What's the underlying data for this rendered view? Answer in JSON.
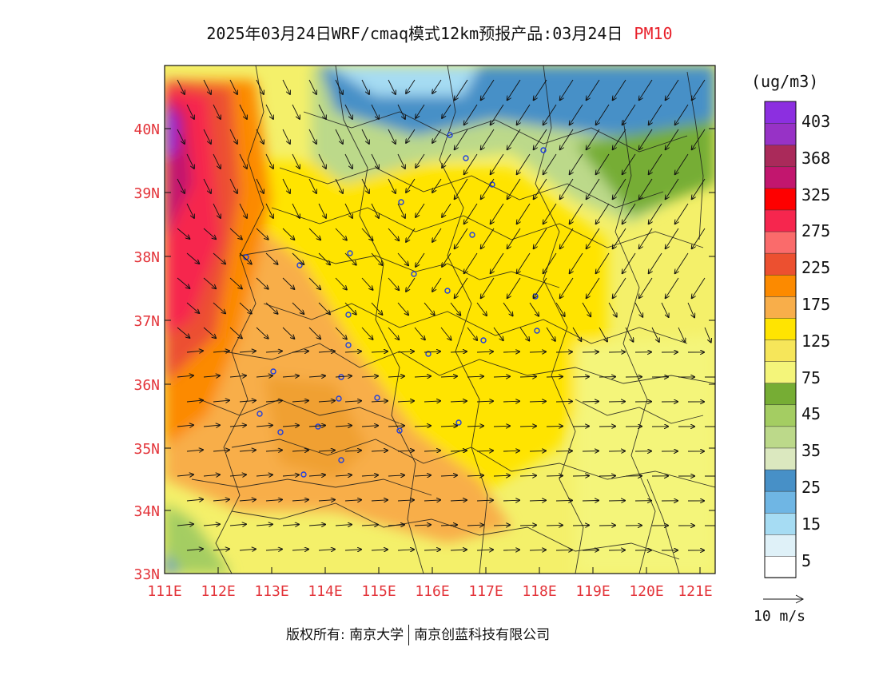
{
  "title": {
    "main": "2025年03月24日WRF/cmaq模式12km预报产品:03月24日",
    "variable": "PM10"
  },
  "map": {
    "lat_labels": [
      "40N",
      "39N",
      "38N",
      "37N",
      "36N",
      "35N",
      "34N",
      "33N"
    ],
    "lon_labels": [
      "111E",
      "112E",
      "113E",
      "114E",
      "115E",
      "116E",
      "117E",
      "118E",
      "119E",
      "120E",
      "121E"
    ],
    "lon_range": [
      111,
      121.3
    ],
    "lat_range": [
      33,
      40.8
    ]
  },
  "colorbar": {
    "units": "(ug/m3)",
    "tick_labels": [
      "403",
      "368",
      "325",
      "275",
      "225",
      "175",
      "125",
      "75",
      "45",
      "35",
      "25",
      "15",
      "5"
    ],
    "colors": [
      "#ffffff",
      "#dff1f8",
      "#a6dcf3",
      "#6fb6e4",
      "#4790c7",
      "#dbe8bf",
      "#bcd98a",
      "#a4cd62",
      "#76ad34",
      "#f4f57a",
      "#f6e65a",
      "#ffe401",
      "#f8ae4a",
      "#fc8a00",
      "#ec5030",
      "#fa6b6b",
      "#f6264e",
      "#fe0000",
      "#c2166e",
      "#aa2a5a",
      "#9732c6",
      "#8c2fe0"
    ]
  },
  "wind_legend": {
    "label": "10 m/s"
  },
  "footer": {
    "copyright": "版权所有: 南京大学",
    "company": "南京创蓝科技有限公司"
  }
}
